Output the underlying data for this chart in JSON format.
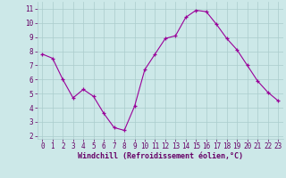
{
  "x": [
    0,
    1,
    2,
    3,
    4,
    5,
    6,
    7,
    8,
    9,
    10,
    11,
    12,
    13,
    14,
    15,
    16,
    17,
    18,
    19,
    20,
    21,
    22,
    23
  ],
  "y": [
    7.8,
    7.5,
    6.0,
    4.7,
    5.3,
    4.8,
    3.6,
    2.6,
    2.4,
    4.1,
    6.7,
    7.8,
    8.9,
    9.1,
    10.4,
    10.9,
    10.8,
    9.9,
    8.9,
    8.1,
    7.0,
    5.9,
    5.1,
    4.5
  ],
  "line_color": "#990099",
  "marker": "+",
  "marker_color": "#990099",
  "bg_color": "#cce8e8",
  "grid_color": "#aacccc",
  "xlabel": "Windchill (Refroidissement éolien,°C)",
  "xlabel_color": "#660066",
  "xlabel_fontsize": 6.0,
  "tick_color": "#660066",
  "tick_fontsize": 5.5,
  "ylim": [
    1.8,
    11.5
  ],
  "yticks": [
    2,
    3,
    4,
    5,
    6,
    7,
    8,
    9,
    10,
    11
  ],
  "xlim": [
    -0.5,
    23.5
  ],
  "xticks": [
    0,
    1,
    2,
    3,
    4,
    5,
    6,
    7,
    8,
    9,
    10,
    11,
    12,
    13,
    14,
    15,
    16,
    17,
    18,
    19,
    20,
    21,
    22,
    23
  ]
}
